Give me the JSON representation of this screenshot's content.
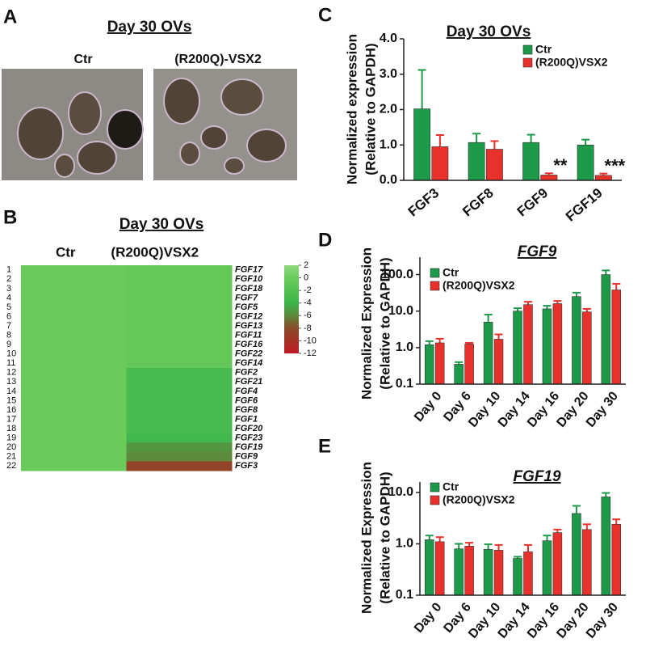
{
  "panel_a": {
    "label": "A",
    "title": "Day 30 OVs",
    "image_labels": [
      "Ctr",
      "(R200Q)-VSX2"
    ]
  },
  "chart_data": [
    {
      "type": "heatmap",
      "label": "B",
      "title": "Day 30 OVs",
      "row_numbers": [
        1,
        2,
        3,
        4,
        5,
        6,
        7,
        8,
        9,
        10,
        11,
        12,
        13,
        14,
        15,
        16,
        17,
        18,
        19,
        20,
        21,
        22
      ],
      "row_labels": [
        "FGF17",
        "FGF10",
        "FGF18",
        "FGF7",
        "FGF5",
        "FGF12",
        "FGF13",
        "FGF11",
        "FGF16",
        "FGF22",
        "FGF14",
        "FGF2",
        "FGF21",
        "FGF4",
        "FGF6",
        "FGF8",
        "FGF1",
        "FGF20",
        "FGF23",
        "FGF19",
        "FGF9",
        "FGF3"
      ],
      "series": [
        {
          "name": "Ctr",
          "values": [
            0,
            0,
            0,
            0,
            0,
            0,
            0,
            0,
            0,
            0,
            0,
            0,
            0,
            0,
            0,
            0,
            0,
            0,
            0,
            0,
            0,
            0
          ]
        },
        {
          "name": "(R200Q)VSX2",
          "values": [
            -0.5,
            -0.5,
            -0.5,
            -0.5,
            -0.5,
            -0.5,
            -0.5,
            -0.5,
            -0.5,
            -0.5,
            -0.5,
            -3,
            -3,
            -3,
            -3,
            -3,
            -3,
            -3,
            -3.5,
            -5.5,
            -6,
            -8.5
          ]
        }
      ],
      "colorscale": [
        [
          2,
          "#8fd97f"
        ],
        [
          0,
          "#6acb5a"
        ],
        [
          -4,
          "#3cb44b"
        ],
        [
          -6,
          "#5e8a3c"
        ],
        [
          -8,
          "#8a4a28"
        ],
        [
          -12,
          "#c01a22"
        ]
      ],
      "clim": [
        -12,
        2
      ],
      "cticks": [
        2,
        0,
        -2,
        -4,
        -6,
        -8,
        -10,
        -12
      ]
    },
    {
      "type": "bar",
      "label": "C",
      "title": "Day 30 OVs",
      "ylabel": [
        "Normalized expression",
        "(Relative to GAPDH)"
      ],
      "categories": [
        "FGF3",
        "FGF8",
        "FGF9",
        "FGF19"
      ],
      "series": [
        {
          "name": "Ctr",
          "color": "#1c9a4a",
          "values": [
            2.02,
            1.07,
            1.07,
            1.0
          ],
          "errors": [
            1.1,
            0.25,
            0.22,
            0.15
          ]
        },
        {
          "name": "(R200Q)VSX2",
          "color": "#e8312b",
          "values": [
            0.95,
            0.88,
            0.15,
            0.14
          ],
          "errors": [
            0.33,
            0.23,
            0.05,
            0.05
          ],
          "significance": [
            null,
            null,
            "**",
            "***"
          ]
        }
      ],
      "ylim": [
        0,
        4
      ],
      "yticks": [
        {
          "value": 0,
          "label": "0.0"
        },
        {
          "value": 1,
          "label": "1.0"
        },
        {
          "value": 2,
          "label": "2.0"
        },
        {
          "value": 3,
          "label": "3.0"
        },
        {
          "value": 4,
          "label": "4.0"
        }
      ],
      "log": false
    },
    {
      "type": "bar",
      "label": "D",
      "title": "FGF9",
      "ylabel": [
        "Normalized Expression",
        "(Relative to GAPDH)"
      ],
      "categories": [
        "Day 0",
        "Day 6",
        "Day 10",
        "Day 14",
        "Day 16",
        "Day 20",
        "Day 30"
      ],
      "series": [
        {
          "name": "Ctr",
          "color": "#1c9a4a",
          "values": [
            1.2,
            0.35,
            5.0,
            10,
            11.5,
            25,
            100
          ],
          "errors": [
            0.3,
            0.05,
            3,
            2,
            2.5,
            7,
            30
          ]
        },
        {
          "name": "(R200Q)VSX2",
          "color": "#e8312b",
          "values": [
            1.35,
            1.25,
            1.7,
            15,
            16,
            9.5,
            38
          ],
          "errors": [
            0.4,
            0.1,
            0.6,
            3,
            3,
            2,
            18
          ]
        }
      ],
      "ylim": [
        0.1,
        300
      ],
      "yticks": [
        0.1,
        {
          "value": 1,
          "label": "1.0"
        },
        {
          "value": 10,
          "label": "10.0"
        },
        {
          "value": 100,
          "label": "100.0"
        }
      ],
      "log": true
    },
    {
      "type": "bar",
      "label": "E",
      "title": "FGF19",
      "ylabel": [
        "Normalized Expression",
        "(Relative to GAPDH)"
      ],
      "categories": [
        "Day 0",
        "Day 6",
        "Day 10",
        "Day 14",
        "Day 16",
        "Day 20",
        "Day 30"
      ],
      "series": [
        {
          "name": "Ctr",
          "color": "#1c9a4a",
          "values": [
            1.2,
            0.8,
            0.78,
            0.52,
            1.15,
            3.9,
            8.2
          ],
          "errors": [
            0.25,
            0.2,
            0.2,
            0.04,
            0.3,
            1.6,
            1.6
          ]
        },
        {
          "name": "(R200Q)VSX2",
          "color": "#e8312b",
          "values": [
            1.1,
            0.9,
            0.75,
            0.7,
            1.65,
            1.9,
            2.4
          ],
          "errors": [
            0.25,
            0.15,
            0.2,
            0.25,
            0.25,
            0.5,
            0.6
          ]
        }
      ],
      "ylim": [
        0.1,
        16
      ],
      "yticks": [
        0.1,
        {
          "value": 1,
          "label": "1.0"
        },
        {
          "value": 10,
          "label": "10.0"
        }
      ],
      "log": true
    }
  ]
}
